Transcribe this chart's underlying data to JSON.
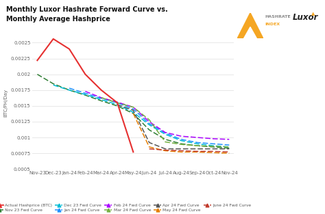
{
  "title": "Monthly Luxor Hashrate Forward Curve vs.\nMonthly Average Hashprice",
  "ylabel": "BTC/PH/Day",
  "background_color": "#ffffff",
  "grid_color": "#e8e8e8",
  "ylim": [
    0.0005,
    0.0026
  ],
  "yticks": [
    0.0005,
    0.00075,
    0.001,
    0.00125,
    0.0015,
    0.00175,
    0.002,
    0.00225,
    0.0025
  ],
  "x_labels": [
    "Nov-23",
    "Dec-23",
    "Jan-24",
    "Feb-24",
    "Mar-24",
    "Apr-24",
    "May-24",
    "Jun-24",
    "Jul-24",
    "Aug-24",
    "Sep-24",
    "Oct-24",
    "Nov-24"
  ],
  "actual_hashprice": {
    "label": "Actual Hashprice (BTC)",
    "color": "#e63030",
    "x": [
      0,
      1,
      2,
      3,
      4,
      5,
      6
    ],
    "y": [
      0.00222,
      0.00256,
      0.0024,
      0.002,
      0.00175,
      0.00155,
      0.00077
    ]
  },
  "curves": [
    {
      "label": "Nov 23 Fwd Curve",
      "color": "#2e7d32",
      "x": [
        0,
        1,
        2,
        3,
        4,
        5,
        6,
        7,
        8,
        9,
        10,
        11,
        12
      ],
      "y": [
        0.002,
        0.00185,
        0.00175,
        0.00167,
        0.00158,
        0.0015,
        0.00138,
        0.00112,
        0.00097,
        0.0009,
        0.00087,
        0.00085,
        0.00083
      ]
    },
    {
      "label": "Dec 23 Fwd Curve",
      "color": "#00bcd4",
      "x": [
        1,
        2,
        3,
        4,
        5,
        6,
        7,
        8,
        9,
        10,
        11,
        12
      ],
      "y": [
        0.00183,
        0.00175,
        0.00168,
        0.0016,
        0.00152,
        0.0014,
        0.0012,
        0.00105,
        0.00095,
        0.0009,
        0.00087,
        0.00085
      ]
    },
    {
      "label": "Jan 24 Fwd Curve",
      "color": "#1e90ff",
      "x": [
        2,
        3,
        4,
        5,
        6,
        7,
        8,
        9,
        10,
        11,
        12
      ],
      "y": [
        0.00178,
        0.0017,
        0.00162,
        0.00155,
        0.00145,
        0.00122,
        0.00107,
        0.00097,
        0.00092,
        0.0009,
        0.00088
      ]
    },
    {
      "label": "Feb 24 Fwd Curve",
      "color": "#aa00ff",
      "x": [
        3,
        4,
        5,
        6,
        7,
        8,
        9,
        10,
        11,
        12
      ],
      "y": [
        0.00173,
        0.00163,
        0.00156,
        0.00148,
        0.00125,
        0.00108,
        0.00102,
        0.001,
        0.00098,
        0.00097
      ]
    },
    {
      "label": "Mar 24 Fwd Curve",
      "color": "#76b041",
      "x": [
        4,
        5,
        6,
        7,
        8,
        9,
        10,
        11,
        12
      ],
      "y": [
        0.00163,
        0.00155,
        0.00148,
        0.00128,
        0.00093,
        0.00089,
        0.00087,
        0.00086,
        0.00085
      ]
    },
    {
      "label": "Apr 24 Fwd Curve",
      "color": "#555555",
      "x": [
        5,
        6,
        7,
        8,
        9,
        10,
        11,
        12
      ],
      "y": [
        0.00152,
        0.00143,
        0.00092,
        0.00082,
        0.00082,
        0.00082,
        0.00082,
        0.00082
      ]
    },
    {
      "label": "May 24 Fwd Curve",
      "color": "#e67e00",
      "x": [
        6,
        7,
        8,
        9,
        10,
        11,
        12
      ],
      "y": [
        0.00138,
        0.00085,
        0.00079,
        0.00077,
        0.00077,
        0.00076,
        0.00075
      ]
    },
    {
      "label": "June 24 Fwd Curve",
      "color": "#c0392b",
      "x": [
        7,
        8,
        9,
        10,
        11,
        12
      ],
      "y": [
        0.00082,
        0.0008,
        0.00079,
        0.00078,
        0.00078,
        0.00077
      ]
    }
  ],
  "legend_order": [
    "Actual Hashprice (BTC)",
    "Nov 23 Fwd Curve",
    "Dec 23 Fwd Curve",
    "Jan 24 Fwd Curve",
    "Feb 24 Fwd Curve",
    "Mar 24 Fwd Curve",
    "Apr 24 Fwd Curve",
    "May 24 Fwd Curve",
    "June 24 Fwd Curve"
  ]
}
